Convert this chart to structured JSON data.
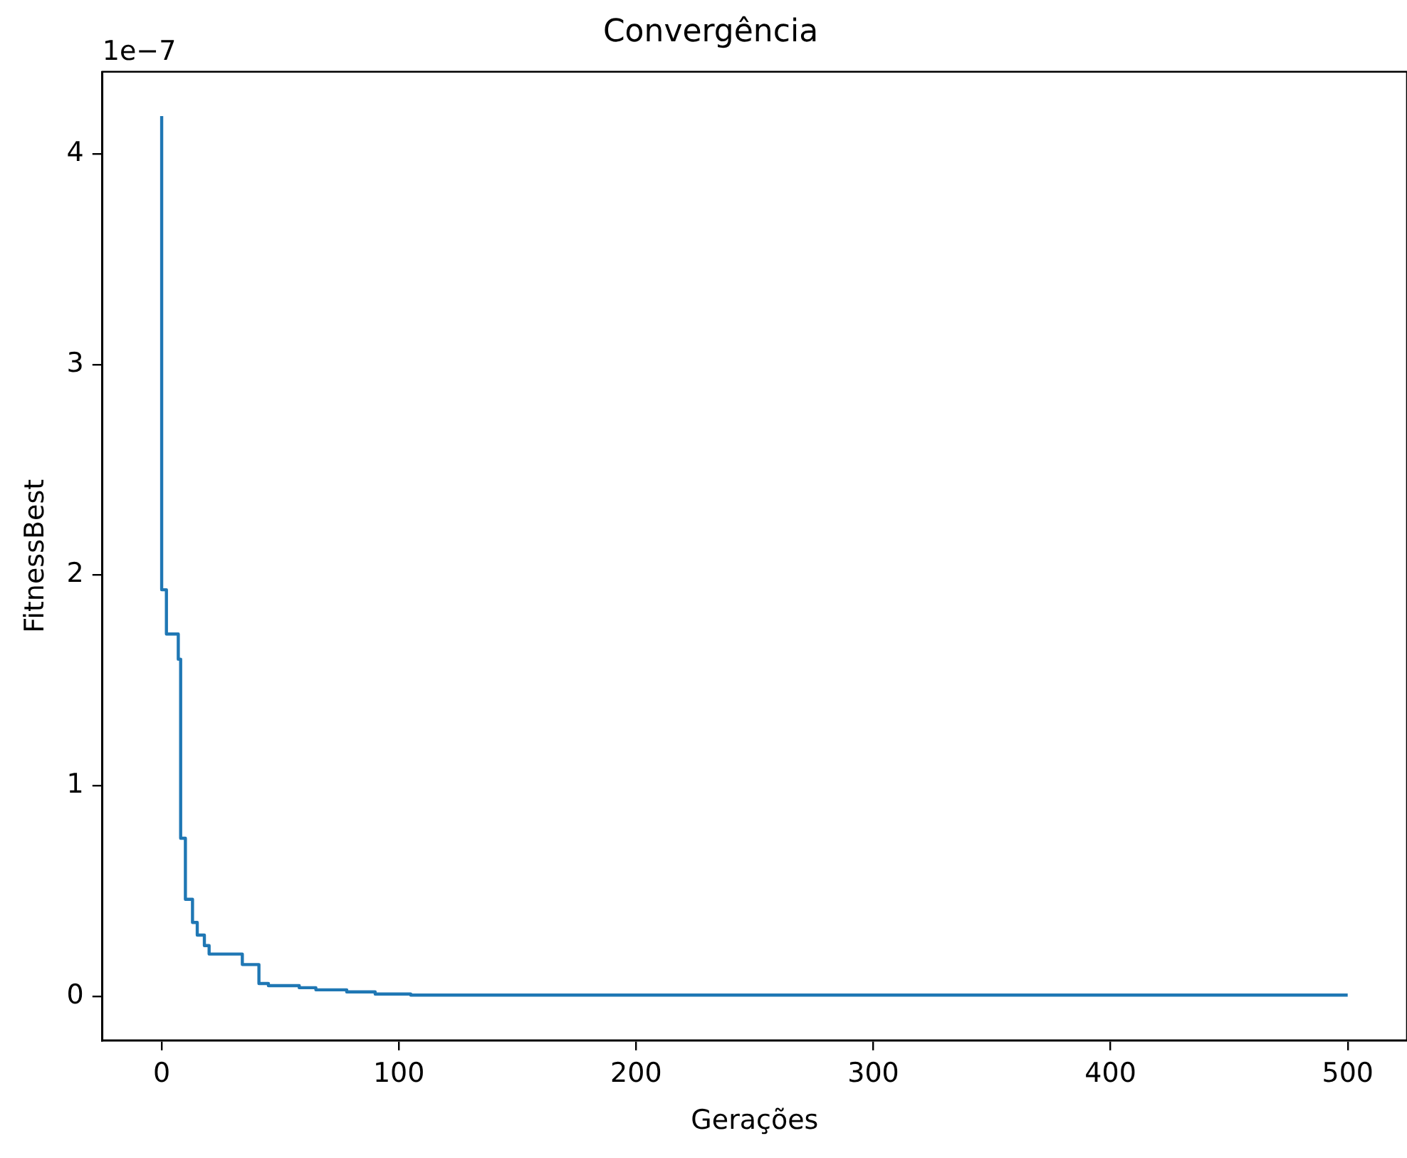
{
  "chart_data": {
    "type": "step",
    "title": "Convergência",
    "xlabel": "Gerações",
    "ylabel": "FitnessBest",
    "annotations": [
      "1e−7"
    ],
    "x": [
      0,
      2,
      7,
      8,
      10,
      13,
      15,
      18,
      20,
      34,
      41,
      45,
      58,
      65,
      78,
      90,
      105,
      135,
      500
    ],
    "series": [
      {
        "color": "#1f77b4",
        "values": [
          4.18,
          1.93,
          1.72,
          1.6,
          0.75,
          0.46,
          0.35,
          0.29,
          0.24,
          0.2,
          0.15,
          0.06,
          0.05,
          0.04,
          0.03,
          0.02,
          0.01,
          0.005,
          0.005
        ]
      }
    ],
    "xlim": [
      -25,
      525
    ],
    "xticks": [
      0,
      100,
      200,
      300,
      400,
      500
    ],
    "ylim": [
      -0.21,
      4.39
    ],
    "yticks": [
      0,
      1,
      2,
      3,
      4
    ],
    "grid": false,
    "legend": false
  }
}
